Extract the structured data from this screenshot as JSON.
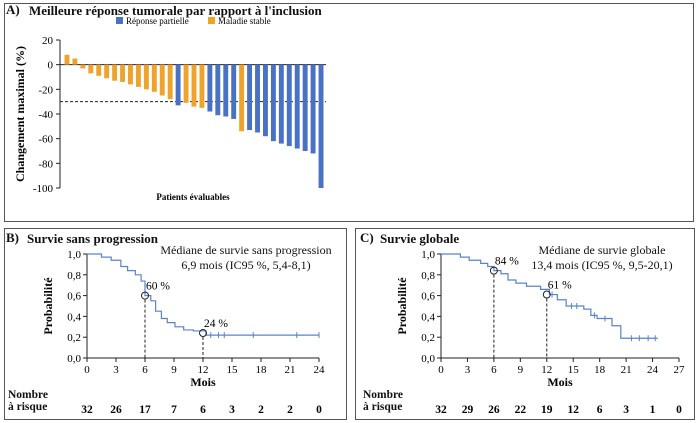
{
  "chart_data": [
    {
      "type": "bar",
      "panel_label": "A)",
      "title": "Meilleure réponse tumorale par rapport à l'inclusion",
      "ylabel": "Changement maximal (%)",
      "xlabel": "Patients évaluables",
      "ylim": [
        -100,
        20
      ],
      "yticks": [
        20,
        0,
        -20,
        -40,
        -60,
        -80,
        -100
      ],
      "threshold": -30,
      "legend_position": "top-right",
      "series": [
        {
          "name": "Réponse partielle",
          "color": "#4a72c4"
        },
        {
          "name": "Maladie stable",
          "color": "#f0a32a"
        }
      ],
      "values": [
        8,
        5,
        -3,
        -7,
        -9,
        -11,
        -13,
        -14,
        -16,
        -18,
        -20,
        -22,
        -25,
        -28,
        -33,
        -31,
        -34,
        -35,
        -38,
        -41,
        -42,
        -44,
        -54,
        -53,
        -55,
        -58,
        -62,
        -64,
        -66,
        -68,
        -70,
        -72,
        -100
      ],
      "groups": [
        1,
        1,
        1,
        1,
        1,
        1,
        1,
        1,
        1,
        1,
        1,
        1,
        1,
        1,
        0,
        1,
        1,
        1,
        0,
        0,
        0,
        0,
        1,
        0,
        0,
        0,
        0,
        0,
        0,
        0,
        0,
        0,
        0
      ]
    },
    {
      "type": "line",
      "panel_label": "B)",
      "title": "Survie sans progression",
      "annotation": "Médiane de survie sans progression",
      "annotation2": "6,9 mois (IC95 %, 5,4-8,1)",
      "ylabel": "Probabilité",
      "xlabel": "Mois",
      "xlim": [
        0,
        24
      ],
      "ylim": [
        0,
        1
      ],
      "xticks": [
        0,
        3,
        6,
        9,
        12,
        15,
        18,
        21,
        24
      ],
      "yticks": [
        "0,0",
        "0,2",
        "0,4",
        "0,6",
        "0,8",
        "1,0"
      ],
      "series": [
        {
          "color": "#5b84c8",
          "x": [
            0,
            1.5,
            2.5,
            3.5,
            4.2,
            5,
            5.6,
            6,
            6.6,
            7.1,
            7.7,
            8.3,
            9.1,
            10,
            11,
            12.3,
            24
          ],
          "y": [
            1.0,
            0.97,
            0.94,
            0.88,
            0.84,
            0.8,
            0.74,
            0.6,
            0.55,
            0.45,
            0.38,
            0.34,
            0.3,
            0.27,
            0.26,
            0.22,
            0.22
          ]
        }
      ],
      "censor_x": [
        12.8,
        13.6,
        14.2,
        17.2,
        21.7,
        24
      ],
      "markers": [
        {
          "x": 6,
          "y": 0.6,
          "label": "60 %"
        },
        {
          "x": 12,
          "y": 0.24,
          "label": "24 %"
        }
      ],
      "risk_label_1": "Nombre",
      "risk_label_2": "à risque",
      "at_risk": [
        "32",
        "26",
        "17",
        "7",
        "6",
        "3",
        "2",
        "2",
        "0"
      ]
    },
    {
      "type": "line",
      "panel_label": "C)",
      "title": "Survie globale",
      "annotation": "Médiane de survie globale",
      "annotation2": "13,4 mois (IC95 %, 9,5-20,1)",
      "ylabel": "Probabilité",
      "xlabel": "Mois",
      "xlim": [
        0,
        27
      ],
      "ylim": [
        0,
        1
      ],
      "xticks": [
        0,
        3,
        6,
        9,
        12,
        15,
        18,
        21,
        24,
        27
      ],
      "yticks": [
        "0,0",
        "0,2",
        "0,4",
        "0,6",
        "0,8",
        "1,0"
      ],
      "series": [
        {
          "color": "#5b84c8",
          "x": [
            0,
            2.2,
            3.2,
            4.5,
            5.3,
            6,
            6.8,
            7.6,
            8.5,
            9.7,
            11.3,
            12.3,
            13.2,
            14.2,
            16.2,
            17,
            17.7,
            19.4,
            20.4,
            24.6
          ],
          "y": [
            1.0,
            0.97,
            0.94,
            0.91,
            0.88,
            0.84,
            0.81,
            0.75,
            0.72,
            0.69,
            0.66,
            0.61,
            0.56,
            0.5,
            0.47,
            0.41,
            0.38,
            0.31,
            0.19,
            0.19
          ]
        }
      ],
      "censor_x": [
        12.6,
        14.8,
        15.4,
        17.4,
        18.6,
        21.6,
        22.5,
        23.5,
        24.3
      ],
      "markers": [
        {
          "x": 6,
          "y": 0.84,
          "label": "84 %"
        },
        {
          "x": 12,
          "y": 0.61,
          "label": "61 %"
        }
      ],
      "risk_label_1": "Nombre",
      "risk_label_2": "à risque",
      "at_risk": [
        "32",
        "29",
        "26",
        "22",
        "19",
        "12",
        "6",
        "3",
        "1",
        "0"
      ]
    }
  ]
}
